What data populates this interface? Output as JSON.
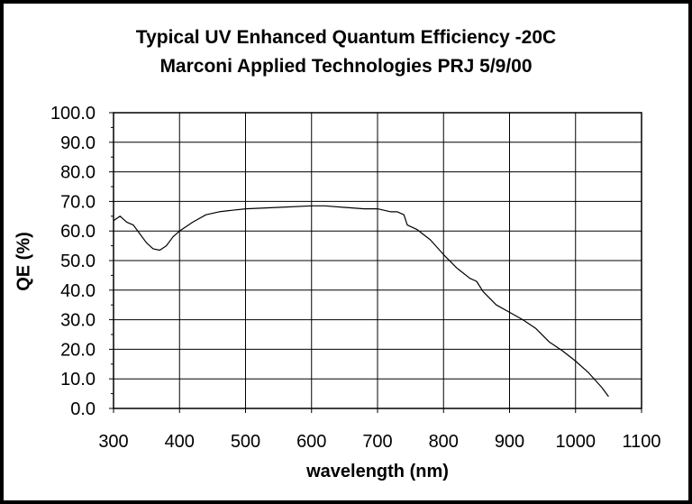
{
  "chart_data": {
    "type": "line",
    "title": "Typical UV Enhanced Quantum Efficiency -20C",
    "subtitle": "Marconi Applied Technologies  PRJ 5/9/00",
    "xlabel": "wavelength (nm)",
    "ylabel": "QE (%)",
    "xlim": [
      300,
      1100
    ],
    "ylim": [
      0,
      100
    ],
    "xticks": [
      "300",
      "400",
      "500",
      "600",
      "700",
      "800",
      "900",
      "1000",
      "1100"
    ],
    "yticks": [
      "0.0",
      "10.0",
      "20.0",
      "30.0",
      "40.0",
      "50.0",
      "60.0",
      "70.0",
      "80.0",
      "90.0",
      "100.0"
    ],
    "grid": true,
    "legend": "none",
    "line_color": "#000000",
    "series": [
      {
        "x": [
          300,
          310,
          320,
          330,
          340,
          350,
          360,
          370,
          380,
          390,
          400,
          420,
          440,
          460,
          480,
          500,
          550,
          600,
          620,
          650,
          680,
          700,
          720,
          730,
          740,
          745,
          760,
          780,
          800,
          820,
          840,
          850,
          860,
          880,
          900,
          920,
          940,
          960,
          980,
          1000,
          1020,
          1040,
          1050
        ],
        "y": [
          63.5,
          65,
          63,
          62,
          59,
          56,
          54,
          53.5,
          55,
          58,
          60,
          63,
          65.5,
          66.5,
          67,
          67.5,
          68,
          68.5,
          68.5,
          68,
          67.5,
          67.5,
          66.5,
          66.5,
          65.5,
          62,
          60.5,
          57,
          52,
          47.5,
          44,
          43,
          39.5,
          35,
          32.5,
          30,
          27,
          22.5,
          19.5,
          16,
          12,
          7,
          4
        ]
      }
    ]
  }
}
